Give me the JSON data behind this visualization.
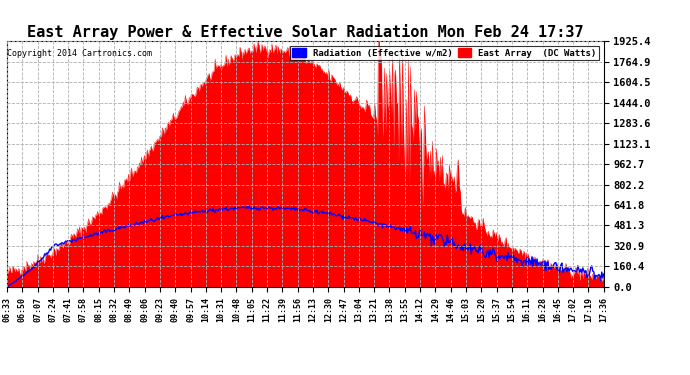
{
  "title": "East Array Power & Effective Solar Radiation Mon Feb 24 17:37",
  "copyright": "Copyright 2014 Cartronics.com",
  "legend_blue": "Radiation (Effective w/m2)",
  "legend_red": "East Array  (DC Watts)",
  "y_ticks": [
    0.0,
    160.4,
    320.9,
    481.3,
    641.8,
    802.2,
    962.7,
    1123.1,
    1283.6,
    1444.0,
    1604.5,
    1764.9,
    1925.4
  ],
  "x_labels": [
    "06:33",
    "06:50",
    "07:07",
    "07:24",
    "07:41",
    "07:58",
    "08:15",
    "08:32",
    "08:49",
    "09:06",
    "09:23",
    "09:40",
    "09:57",
    "10:14",
    "10:31",
    "10:48",
    "11:05",
    "11:22",
    "11:39",
    "11:56",
    "12:13",
    "12:30",
    "12:47",
    "13:04",
    "13:21",
    "13:38",
    "13:55",
    "14:12",
    "14:29",
    "14:46",
    "15:03",
    "15:20",
    "15:37",
    "15:54",
    "16:11",
    "16:28",
    "16:45",
    "17:02",
    "17:19",
    "17:36"
  ],
  "background_color": "#ffffff",
  "plot_bg_color": "#ffffff",
  "grid_color": "#b0b0b0",
  "red_fill_color": "#ff0000",
  "blue_line_color": "#0000ff",
  "title_fontsize": 11,
  "y_max": 1925.4,
  "y_min": 0.0
}
